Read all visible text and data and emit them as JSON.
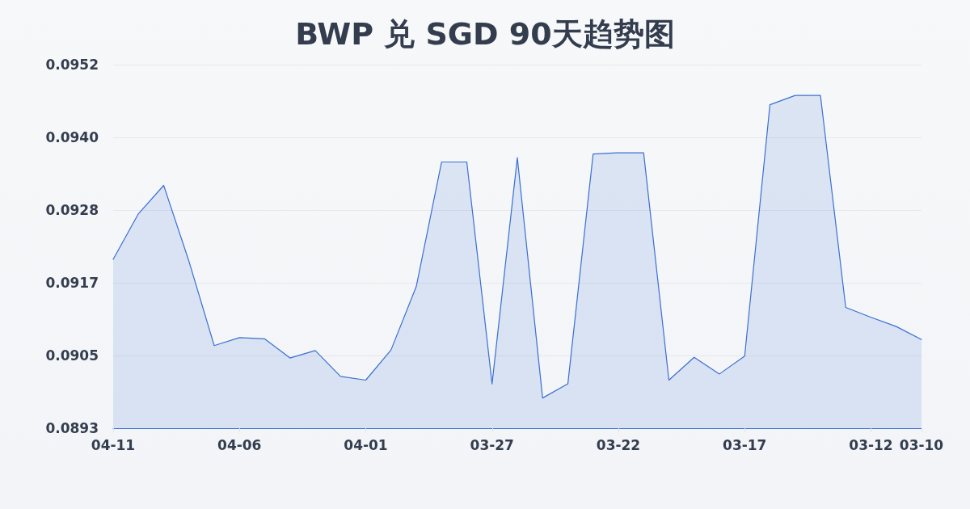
{
  "chart_data": {
    "type": "area",
    "title": "BWP 兑 SGD 90天趋势图",
    "categories": [
      "04-11",
      null,
      null,
      null,
      null,
      "04-06",
      null,
      null,
      null,
      null,
      "04-01",
      null,
      null,
      null,
      null,
      "03-27",
      null,
      null,
      null,
      null,
      "03-22",
      null,
      null,
      null,
      null,
      "03-17",
      null,
      null,
      null,
      null,
      "03-12",
      null,
      "03-10"
    ],
    "values": [
      0.09204,
      0.09278,
      0.09324,
      0.09201,
      0.09064,
      0.09077,
      0.09075,
      0.09044,
      0.09056,
      0.09014,
      0.09008,
      0.09057,
      0.0916,
      0.09362,
      0.09362,
      0.09002,
      0.09369,
      0.08979,
      0.09002,
      0.09375,
      0.09377,
      0.09377,
      0.09008,
      0.09045,
      0.09018,
      0.09047,
      0.09455,
      0.0947,
      0.0947,
      0.09126,
      0.0911,
      0.09095,
      0.09074
    ],
    "color": "#3a6fd2",
    "ylim": [
      0.0893,
      0.0952
    ],
    "yticks": [
      {
        "value": 0.0893,
        "label": "0.0893"
      },
      {
        "value": 0.09048,
        "label": "0.0905"
      },
      {
        "value": 0.09166,
        "label": "0.0917"
      },
      {
        "value": 0.09284,
        "label": "0.0928"
      },
      {
        "value": 0.09402,
        "label": "0.0940"
      },
      {
        "value": 0.0952,
        "label": "0.0952"
      }
    ],
    "grid": "y",
    "marker": "none",
    "line_style": "solid"
  }
}
